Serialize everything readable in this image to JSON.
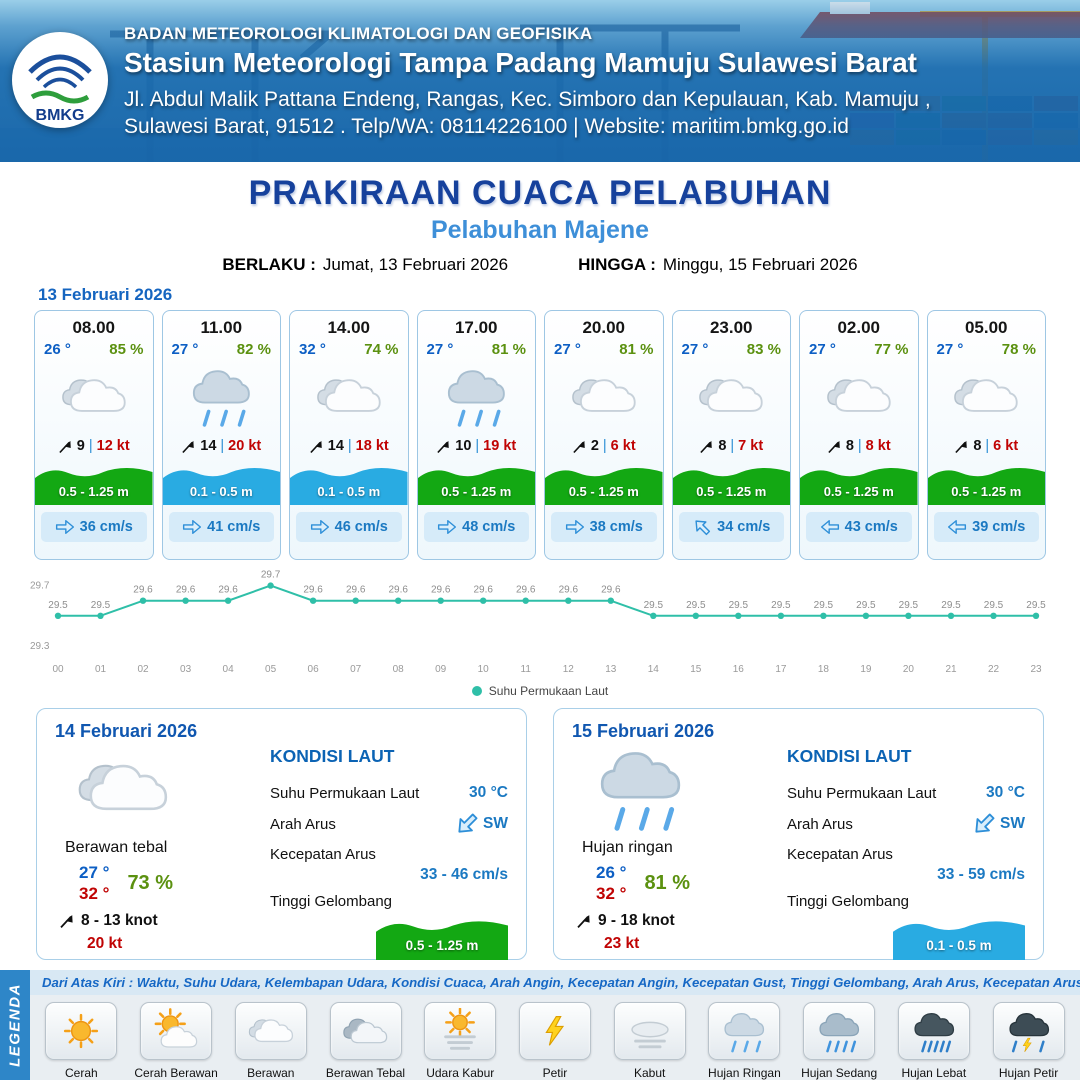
{
  "header": {
    "logo_text": "BMKG",
    "org": "BADAN METEOROLOGI KLIMATOLOGI DAN GEOFISIKA",
    "station": "Stasiun Meteorologi Tampa Padang Mamuju Sulawesi Barat",
    "address_line1": "Jl. Abdul Malik Pattana Endeng, Rangas, Kec. Simboro dan Kepulauan, Kab. Mamuju ,",
    "address_line2": "Sulawesi Barat, 91512 . Telp/WA: 08114226100 | Website: maritim.bmkg.go.id"
  },
  "title": {
    "main": "PRAKIRAAN CUACA PELABUHAN",
    "sub": "Pelabuhan Majene",
    "berlaku_label": "BERLAKU :",
    "berlaku_value": "Jumat, 13 Februari 2026",
    "hingga_label": "HINGGA :",
    "hingga_value": "Minggu, 15 Februari 2026"
  },
  "ui": {
    "wind_separator": "|"
  },
  "forecast_date": "13 Februari 2026",
  "colors": {
    "wave_green": "#13a813",
    "wave_blue": "#29abe2",
    "accent_blue": "#1565c0"
  },
  "forecast_cards": [
    {
      "time": "08.00",
      "temp": "26 °",
      "humidity": "85 %",
      "icon": "berawan",
      "wind_speed": "9",
      "gust": "12 kt",
      "wave": "0.5 - 1.25 m",
      "wave_color": "#13a813",
      "current": "36 cm/s",
      "arrow_deg": 0
    },
    {
      "time": "11.00",
      "temp": "27 °",
      "humidity": "82 %",
      "icon": "hujan-ringan",
      "wind_speed": "14",
      "gust": "20 kt",
      "wave": "0.1 - 0.5 m",
      "wave_color": "#29abe2",
      "current": "41 cm/s",
      "arrow_deg": 0
    },
    {
      "time": "14.00",
      "temp": "32 °",
      "humidity": "74 %",
      "icon": "berawan",
      "wind_speed": "14",
      "gust": "18 kt",
      "wave": "0.1 - 0.5 m",
      "wave_color": "#29abe2",
      "current": "46 cm/s",
      "arrow_deg": 0
    },
    {
      "time": "17.00",
      "temp": "27 °",
      "humidity": "81 %",
      "icon": "hujan-ringan",
      "wind_speed": "10",
      "gust": "19 kt",
      "wave": "0.5 - 1.25 m",
      "wave_color": "#13a813",
      "current": "48 cm/s",
      "arrow_deg": 0
    },
    {
      "time": "20.00",
      "temp": "27 °",
      "humidity": "81 %",
      "icon": "berawan",
      "wind_speed": "2",
      "gust": "6 kt",
      "wave": "0.5 - 1.25 m",
      "wave_color": "#13a813",
      "current": "38 cm/s",
      "arrow_deg": 0
    },
    {
      "time": "23.00",
      "temp": "27 °",
      "humidity": "83 %",
      "icon": "berawan",
      "wind_speed": "8",
      "gust": "7 kt",
      "wave": "0.5 - 1.25 m",
      "wave_color": "#13a813",
      "current": "34 cm/s",
      "arrow_deg": -135
    },
    {
      "time": "02.00",
      "temp": "27 °",
      "humidity": "77 %",
      "icon": "berawan",
      "wind_speed": "8",
      "gust": "8 kt",
      "wave": "0.5 - 1.25 m",
      "wave_color": "#13a813",
      "current": "43 cm/s",
      "arrow_deg": 180
    },
    {
      "time": "05.00",
      "temp": "27 °",
      "humidity": "78 %",
      "icon": "berawan",
      "wind_speed": "8",
      "gust": "6 kt",
      "wave": "0.5 - 1.25 m",
      "wave_color": "#13a813",
      "current": "39 cm/s",
      "arrow_deg": 180
    }
  ],
  "chart_data": {
    "type": "line",
    "x": [
      "00",
      "01",
      "02",
      "03",
      "04",
      "05",
      "06",
      "07",
      "08",
      "09",
      "10",
      "11",
      "12",
      "13",
      "14",
      "15",
      "16",
      "17",
      "18",
      "19",
      "20",
      "21",
      "22",
      "23"
    ],
    "series": [
      {
        "name": "Suhu Permukaan Laut",
        "values": [
          29.5,
          29.5,
          29.6,
          29.6,
          29.6,
          29.7,
          29.6,
          29.6,
          29.6,
          29.6,
          29.6,
          29.6,
          29.6,
          29.6,
          29.5,
          29.5,
          29.5,
          29.5,
          29.5,
          29.5,
          29.5,
          29.5,
          29.5,
          29.5
        ]
      }
    ],
    "ylim": [
      29.3,
      29.7
    ],
    "yticks": [
      29.7,
      29.3
    ],
    "line_color": "#2fbfa8",
    "grid": false,
    "legend_position": "bottom"
  },
  "day_summaries": [
    {
      "date": "14 Februari 2026",
      "icon": "berawan",
      "condition": "Berawan tebal",
      "temp_min": "27 °",
      "temp_max": "32 °",
      "humidity": "73 %",
      "wind_range": "8 - 13 knot",
      "gust": "20 kt",
      "sea": {
        "title": "KONDISI LAUT",
        "sst_label": "Suhu Permukaan Laut",
        "sst": "30 °C",
        "current_dir_label": "Arah Arus",
        "current_dir": "SW",
        "arrow_deg": 135,
        "current_speed_label": "Kecepatan Arus",
        "current_speed": "33 - 46 cm/s",
        "wave_label": "Tinggi Gelombang",
        "wave": "0.5 - 1.25 m",
        "wave_color": "#13a813"
      }
    },
    {
      "date": "15 Februari 2026",
      "icon": "hujan-ringan",
      "condition": "Hujan ringan",
      "temp_min": "26 °",
      "temp_max": "32 °",
      "humidity": "81 %",
      "wind_range": "9 - 18 knot",
      "gust": "23 kt",
      "sea": {
        "title": "KONDISI LAUT",
        "sst_label": "Suhu Permukaan Laut",
        "sst": "30 °C",
        "current_dir_label": "Arah Arus",
        "current_dir": "SW",
        "arrow_deg": 135,
        "current_speed_label": "Kecepatan Arus",
        "current_speed": "33 - 59 cm/s",
        "wave_label": "Tinggi Gelombang",
        "wave": "0.1 - 0.5 m",
        "wave_color": "#29abe2"
      }
    }
  ],
  "legend": {
    "title": "LEGENDA",
    "note": "Dari Atas Kiri : Waktu, Suhu Udara, Kelembapan Udara, Kondisi Cuaca, Arah Angin, Kecepatan Angin, Kecepatan Gust, Tinggi Gelombang, Arah Arus, Kecepatan Arus",
    "items": [
      {
        "label": "Cerah",
        "icon": "cerah"
      },
      {
        "label": "Cerah Berawan",
        "icon": "cerah-berawan"
      },
      {
        "label": "Berawan",
        "icon": "berawan"
      },
      {
        "label": "Berawan Tebal",
        "icon": "berawan-tebal"
      },
      {
        "label": "Udara Kabur",
        "icon": "udara-kabur"
      },
      {
        "label": "Petir",
        "icon": "petir"
      },
      {
        "label": "Kabut",
        "icon": "kabut"
      },
      {
        "label": "Hujan Ringan",
        "icon": "hujan-ringan"
      },
      {
        "label": "Hujan Sedang",
        "icon": "hujan-sedang"
      },
      {
        "label": "Hujan Lebat",
        "icon": "hujan-lebat"
      },
      {
        "label": "Hujan Petir",
        "icon": "hujan-petir"
      }
    ]
  }
}
